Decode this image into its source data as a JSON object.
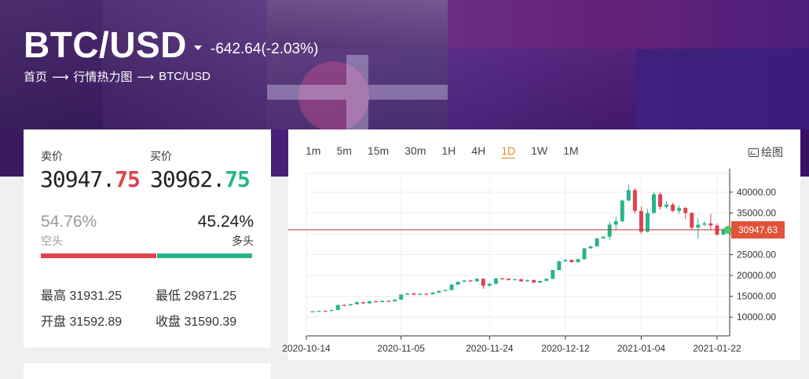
{
  "header": {
    "title": "BTC/USD",
    "change": "-642.64(-2.03%)",
    "breadcrumb": [
      "首页",
      "行情热力图",
      "BTC/USD"
    ]
  },
  "quote": {
    "sell_label": "卖价",
    "sell_main": "30947.",
    "sell_tail": "75",
    "buy_label": "买价",
    "buy_main": "30962.",
    "buy_tail": "75",
    "short_pct": "54.76%",
    "short_label": "空头",
    "long_pct": "45.24%",
    "long_label": "多头",
    "short_ratio": 0.5476,
    "high_label": "最高",
    "high": "31931.25",
    "low_label": "最低",
    "low": "29871.25",
    "open_label": "开盘",
    "open": "31592.89",
    "close_label": "收盘",
    "close": "31590.39"
  },
  "toolbar": {
    "periods": [
      "1m",
      "5m",
      "15m",
      "30m",
      "1H",
      "4H",
      "1D",
      "1W",
      "1M"
    ],
    "active_period": "1D",
    "draw_label": "绘图"
  },
  "colors": {
    "up": "#27b48c",
    "down": "#e0424f",
    "accent": "#e08a1e",
    "last_price_bg": "#e0533a"
  },
  "chart_data": {
    "type": "candlestick",
    "y_ticks": [
      "40000.00",
      "35000.00",
      "30000.00",
      "25000.00",
      "20000.00",
      "15000.00",
      "10000.00"
    ],
    "x_ticks": [
      "2020-10-14",
      "2020-11-05",
      "2020-11-24",
      "2020-12-12",
      "2021-01-04",
      "2021-01-22"
    ],
    "last_price": "30947.63",
    "last_price_value": 30947.63,
    "ylim": [
      5500,
      44500
    ],
    "candles": [
      [
        11300,
        11400,
        11250,
        11450
      ],
      [
        11400,
        11500,
        11350,
        11550
      ],
      [
        11500,
        11450,
        11400,
        11600
      ],
      [
        11450,
        11700,
        11400,
        11750
      ],
      [
        11700,
        12900,
        11650,
        12950
      ],
      [
        12900,
        12800,
        12700,
        13100
      ],
      [
        12800,
        13100,
        12750,
        13200
      ],
      [
        13100,
        13600,
        13000,
        13700
      ],
      [
        13600,
        13300,
        13250,
        13700
      ],
      [
        13300,
        13800,
        13200,
        13900
      ],
      [
        13800,
        13600,
        13500,
        13900
      ],
      [
        13600,
        13900,
        13550,
        14000
      ],
      [
        13900,
        13800,
        13700,
        14000
      ],
      [
        13800,
        14200,
        13750,
        14300
      ],
      [
        14200,
        15400,
        14100,
        15500
      ],
      [
        15400,
        15700,
        15300,
        15800
      ],
      [
        15700,
        15400,
        15300,
        15800
      ],
      [
        15400,
        15600,
        15300,
        15700
      ],
      [
        15600,
        15500,
        15400,
        15700
      ],
      [
        15500,
        15900,
        15450,
        16000
      ],
      [
        15900,
        16300,
        15800,
        16400
      ],
      [
        16300,
        16500,
        16200,
        16600
      ],
      [
        16500,
        17800,
        16400,
        17900
      ],
      [
        17800,
        18500,
        17700,
        18600
      ],
      [
        18500,
        18800,
        18400,
        18900
      ],
      [
        18800,
        18600,
        18500,
        19000
      ],
      [
        18600,
        19200,
        18500,
        19300
      ],
      [
        19200,
        17500,
        16800,
        19300
      ],
      [
        17500,
        18000,
        17300,
        18100
      ],
      [
        18000,
        19300,
        17900,
        19400
      ],
      [
        19300,
        19200,
        19000,
        19400
      ],
      [
        19200,
        18900,
        18800,
        19300
      ],
      [
        18900,
        19100,
        18800,
        19200
      ],
      [
        19100,
        18600,
        18500,
        19200
      ],
      [
        18600,
        18900,
        18500,
        19000
      ],
      [
        18900,
        18300,
        18200,
        19000
      ],
      [
        18300,
        18700,
        18200,
        18800
      ],
      [
        18700,
        19200,
        18600,
        19300
      ],
      [
        19200,
        21300,
        19100,
        21400
      ],
      [
        21300,
        23400,
        21200,
        23500
      ],
      [
        23400,
        23700,
        23300,
        24000
      ],
      [
        23700,
        23200,
        23100,
        23900
      ],
      [
        23200,
        23900,
        23100,
        24100
      ],
      [
        23900,
        26500,
        23800,
        26600
      ],
      [
        26500,
        27000,
        26400,
        27100
      ],
      [
        27000,
        28900,
        26900,
        29000
      ],
      [
        28900,
        29300,
        28800,
        29400
      ],
      [
        29300,
        32200,
        28500,
        33000
      ],
      [
        32200,
        33000,
        31000,
        34000
      ],
      [
        33000,
        38000,
        32800,
        38200
      ],
      [
        38000,
        40500,
        37800,
        41900
      ],
      [
        40500,
        35500,
        34800,
        41000
      ],
      [
        35500,
        30500,
        30000,
        36500
      ],
      [
        30500,
        35000,
        30300,
        36000
      ],
      [
        35000,
        39500,
        34800,
        40000
      ],
      [
        39500,
        36500,
        35800,
        40000
      ],
      [
        36500,
        37000,
        36000,
        37800
      ],
      [
        37000,
        35500,
        35200,
        37500
      ],
      [
        35500,
        36200,
        34800,
        36800
      ],
      [
        36200,
        35000,
        33500,
        36500
      ],
      [
        35000,
        31500,
        31000,
        35200
      ],
      [
        31500,
        32200,
        28800,
        33800
      ],
      [
        32200,
        32500,
        31800,
        33000
      ],
      [
        32500,
        32000,
        30800,
        34800
      ],
      [
        32000,
        29800,
        29500,
        32500
      ],
      [
        29800,
        30947,
        29700,
        31500
      ]
    ]
  }
}
